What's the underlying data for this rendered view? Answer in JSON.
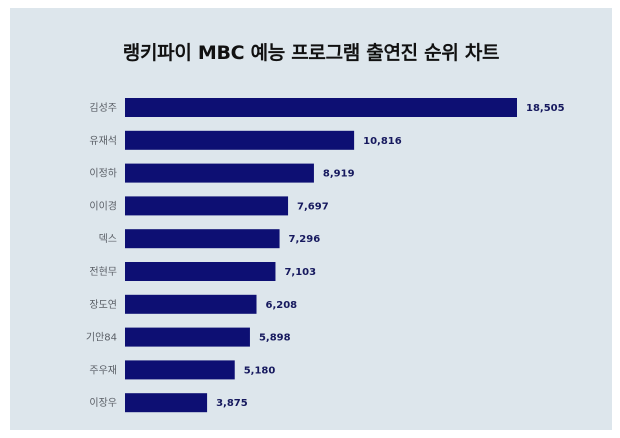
{
  "chart_data": {
    "type": "bar",
    "orientation": "horizontal",
    "title": "랭키파이 MBC 예능 프로그램 출연진 순위 차트",
    "categories": [
      "김성주",
      "유재석",
      "이정하",
      "이이경",
      "덱스",
      "전현무",
      "장도연",
      "기안84",
      "주우재",
      "이장우"
    ],
    "values": [
      18505,
      10816,
      8919,
      7697,
      7296,
      7103,
      6208,
      5898,
      5180,
      3875
    ],
    "value_labels": [
      "18,505",
      "10,816",
      "8,919",
      "7,697",
      "7,296",
      "7,103",
      "6,208",
      "5,898",
      "5,180",
      "3,875"
    ],
    "xlabel": "",
    "ylabel": "",
    "xlim": [
      0,
      18505
    ],
    "grid": false,
    "legend": "none",
    "bar_color": "#0d0f73",
    "background_color": "#dde6ec"
  }
}
